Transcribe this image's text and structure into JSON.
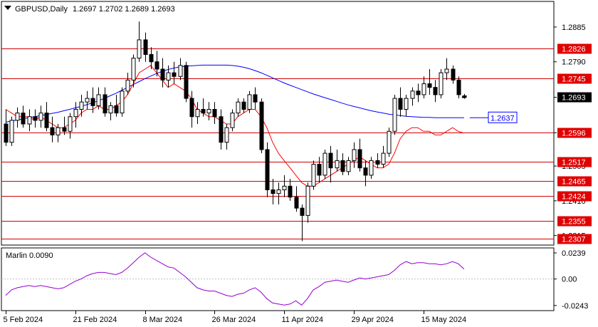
{
  "header": {
    "symbol_tf": "GBPUSD,Daily",
    "ohlc": "1.2697 1.2702 1.2689 1.2693"
  },
  "colors": {
    "candle": "#000000",
    "ma_slow": "#0000ff",
    "ma_fast": "#ff0000",
    "level_line": "#d00000",
    "level_label_bg": "#e00000",
    "current_label_bg": "#000000",
    "ma_label_border": "#0000ff",
    "oscillator": "#9400d3",
    "frame": "#000000"
  },
  "chart_data": [
    {
      "type": "candlestick",
      "title": "GBPUSD,Daily",
      "ylim": [
        1.2289,
        1.2955
      ],
      "yticks": [
        "1.2885",
        "1.2790",
        "1.2693",
        "1.2596",
        "1.2505",
        "1.2410",
        "1.2315"
      ],
      "x_ticks": [
        {
          "label": "5 Feb 2024",
          "index": 0
        },
        {
          "label": "21 Feb 2024",
          "index": 12
        },
        {
          "label": "8 Mar 2024",
          "index": 24
        },
        {
          "label": "26 Mar 2024",
          "index": 36
        },
        {
          "label": "11 Apr 2024",
          "index": 48
        },
        {
          "label": "29 Apr 2024",
          "index": 60
        },
        {
          "label": "15 May 2024",
          "index": 72
        }
      ],
      "levels": [
        {
          "value": 1.2826,
          "label": "1.2826"
        },
        {
          "value": 1.2745,
          "label": "1.2745"
        },
        {
          "value": 1.2596,
          "label": "1.2596"
        },
        {
          "value": 1.2517,
          "label": "1.2517"
        },
        {
          "value": 1.2465,
          "label": "1.2465"
        },
        {
          "value": 1.2424,
          "label": "1.2424"
        },
        {
          "value": 1.2355,
          "label": "1.2355"
        },
        {
          "value": 1.2307,
          "label": "1.2307"
        }
      ],
      "current_price": {
        "value": 1.2693,
        "label": "1.2693"
      },
      "ma_label": {
        "value": 1.2637,
        "label": "1.2637"
      },
      "candles": [
        [
          1.262,
          1.266,
          1.256,
          1.257
        ],
        [
          1.257,
          1.264,
          1.256,
          1.263
        ],
        [
          1.263,
          1.2665,
          1.261,
          1.265
        ],
        [
          1.265,
          1.267,
          1.261,
          1.262
        ],
        [
          1.262,
          1.266,
          1.26,
          1.264
        ],
        [
          1.264,
          1.266,
          1.261,
          1.263
        ],
        [
          1.263,
          1.267,
          1.261,
          1.265
        ],
        [
          1.265,
          1.268,
          1.26,
          1.261
        ],
        [
          1.261,
          1.264,
          1.257,
          1.259
        ],
        [
          1.259,
          1.262,
          1.257,
          1.261
        ],
        [
          1.261,
          1.264,
          1.259,
          1.26
        ],
        [
          1.26,
          1.265,
          1.258,
          1.264
        ],
        [
          1.264,
          1.268,
          1.261,
          1.266
        ],
        [
          1.266,
          1.27,
          1.264,
          1.268
        ],
        [
          1.268,
          1.271,
          1.266,
          1.269
        ],
        [
          1.269,
          1.272,
          1.265,
          1.267
        ],
        [
          1.267,
          1.272,
          1.266,
          1.27
        ],
        [
          1.27,
          1.272,
          1.264,
          1.265
        ],
        [
          1.265,
          1.268,
          1.263,
          1.267
        ],
        [
          1.267,
          1.27,
          1.264,
          1.265
        ],
        [
          1.265,
          1.272,
          1.264,
          1.271
        ],
        [
          1.271,
          1.276,
          1.27,
          1.274
        ],
        [
          1.274,
          1.281,
          1.272,
          1.28
        ],
        [
          1.28,
          1.29,
          1.279,
          1.285
        ],
        [
          1.285,
          1.287,
          1.279,
          1.281
        ],
        [
          1.281,
          1.283,
          1.277,
          1.279
        ],
        [
          1.279,
          1.282,
          1.275,
          1.277
        ],
        [
          1.277,
          1.28,
          1.272,
          1.274
        ],
        [
          1.274,
          1.278,
          1.272,
          1.276
        ],
        [
          1.276,
          1.279,
          1.273,
          1.275
        ],
        [
          1.275,
          1.28,
          1.274,
          1.278
        ],
        [
          1.278,
          1.279,
          1.268,
          1.269
        ],
        [
          1.269,
          1.271,
          1.261,
          1.264
        ],
        [
          1.264,
          1.268,
          1.262,
          1.266
        ],
        [
          1.266,
          1.269,
          1.264,
          1.265
        ],
        [
          1.265,
          1.268,
          1.263,
          1.266
        ],
        [
          1.266,
          1.268,
          1.262,
          1.264
        ],
        [
          1.264,
          1.266,
          1.255,
          1.257
        ],
        [
          1.257,
          1.262,
          1.255,
          1.261
        ],
        [
          1.261,
          1.266,
          1.26,
          1.265
        ],
        [
          1.265,
          1.269,
          1.264,
          1.268
        ],
        [
          1.268,
          1.269,
          1.265,
          1.266
        ],
        [
          1.266,
          1.271,
          1.265,
          1.27
        ],
        [
          1.27,
          1.272,
          1.266,
          1.268
        ],
        [
          1.268,
          1.269,
          1.254,
          1.255
        ],
        [
          1.255,
          1.257,
          1.242,
          1.244
        ],
        [
          1.244,
          1.247,
          1.24,
          1.243
        ],
        [
          1.243,
          1.246,
          1.24,
          1.244
        ],
        [
          1.244,
          1.248,
          1.242,
          1.245
        ],
        [
          1.245,
          1.247,
          1.241,
          1.242
        ],
        [
          1.242,
          1.245,
          1.238,
          1.239
        ],
        [
          1.239,
          1.24,
          1.23,
          1.237
        ],
        [
          1.237,
          1.246,
          1.235,
          1.245
        ],
        [
          1.245,
          1.252,
          1.244,
          1.251
        ],
        [
          1.251,
          1.253,
          1.246,
          1.248
        ],
        [
          1.248,
          1.255,
          1.247,
          1.254
        ],
        [
          1.254,
          1.256,
          1.246,
          1.25
        ],
        [
          1.25,
          1.255,
          1.249,
          1.252
        ],
        [
          1.252,
          1.254,
          1.248,
          1.249
        ],
        [
          1.249,
          1.253,
          1.248,
          1.252
        ],
        [
          1.252,
          1.257,
          1.25,
          1.255
        ],
        [
          1.255,
          1.258,
          1.249,
          1.25
        ],
        [
          1.25,
          1.252,
          1.245,
          1.248
        ],
        [
          1.248,
          1.253,
          1.247,
          1.252
        ],
        [
          1.252,
          1.254,
          1.25,
          1.251
        ],
        [
          1.251,
          1.256,
          1.25,
          1.254
        ],
        [
          1.254,
          1.261,
          1.253,
          1.26
        ],
        [
          1.26,
          1.27,
          1.259,
          1.269
        ],
        [
          1.269,
          1.272,
          1.264,
          1.266
        ],
        [
          1.266,
          1.27,
          1.264,
          1.269
        ],
        [
          1.269,
          1.272,
          1.267,
          1.271
        ],
        [
          1.271,
          1.273,
          1.268,
          1.27
        ],
        [
          1.27,
          1.275,
          1.269,
          1.273
        ],
        [
          1.273,
          1.277,
          1.27,
          1.272
        ],
        [
          1.272,
          1.274,
          1.268,
          1.27
        ],
        [
          1.27,
          1.277,
          1.269,
          1.276
        ],
        [
          1.276,
          1.28,
          1.274,
          1.277
        ],
        [
          1.277,
          1.278,
          1.273,
          1.274
        ],
        [
          1.274,
          1.275,
          1.269,
          1.27
        ],
        [
          1.2697,
          1.2702,
          1.2689,
          1.2693
        ]
      ],
      "ma_slow": [
        1.2625,
        1.2628,
        1.2631,
        1.2634,
        1.2637,
        1.264,
        1.2643,
        1.2646,
        1.2649,
        1.2652,
        1.2656,
        1.266,
        1.2664,
        1.2668,
        1.2673,
        1.2678,
        1.2684,
        1.269,
        1.2697,
        1.2704,
        1.2712,
        1.272,
        1.2728,
        1.2736,
        1.2744,
        1.2751,
        1.2758,
        1.2764,
        1.2769,
        1.2773,
        1.2776,
        1.2778,
        1.2779,
        1.278,
        1.2781,
        1.2781,
        1.2781,
        1.2781,
        1.2781,
        1.278,
        1.2778,
        1.2775,
        1.2771,
        1.2766,
        1.276,
        1.2753,
        1.2746,
        1.2739,
        1.2732,
        1.2726,
        1.272,
        1.2714,
        1.2708,
        1.2702,
        1.2697,
        1.2692,
        1.2687,
        1.2682,
        1.2677,
        1.2672,
        1.2668,
        1.2664,
        1.266,
        1.2656,
        1.2653,
        1.265,
        1.2647,
        1.2645,
        1.2643,
        1.2641,
        1.264,
        1.2639,
        1.2638,
        1.2638,
        1.2637,
        1.2637,
        1.2637,
        1.2637,
        1.2637,
        1.2637
      ],
      "ma_fast": [
        1.266,
        1.265,
        1.264,
        1.264,
        1.264,
        1.263,
        1.264,
        1.263,
        1.262,
        1.261,
        1.261,
        1.262,
        1.263,
        1.265,
        1.266,
        1.266,
        1.267,
        1.266,
        1.266,
        1.267,
        1.268,
        1.27,
        1.273,
        1.276,
        1.277,
        1.278,
        1.276,
        1.274,
        1.272,
        1.273,
        1.272,
        1.271,
        1.269,
        1.266,
        1.265,
        1.264,
        1.264,
        1.263,
        1.262,
        1.262,
        1.264,
        1.265,
        1.266,
        1.266,
        1.264,
        1.261,
        1.257,
        1.254,
        1.252,
        1.25,
        1.248,
        1.246,
        1.245,
        1.245,
        1.246,
        1.247,
        1.248,
        1.249,
        1.25,
        1.251,
        1.252,
        1.253,
        1.252,
        1.251,
        1.25,
        1.25,
        1.251,
        1.254,
        1.258,
        1.26,
        1.261,
        1.261,
        1.26,
        1.26,
        1.259,
        1.259,
        1.26,
        1.261,
        1.26,
        1.2595
      ]
    },
    {
      "type": "line",
      "title": "Marlin 0.0090",
      "ylim": [
        -0.029,
        0.0285
      ],
      "yticks": [
        "0.0239",
        "0.00",
        "-0.0243"
      ],
      "series": [
        {
          "name": "Marlin",
          "values": [
            -0.015,
            -0.01,
            -0.008,
            -0.007,
            -0.006,
            -0.007,
            -0.006,
            -0.007,
            -0.008,
            -0.009,
            -0.008,
            -0.005,
            -0.002,
            0.0,
            0.003,
            0.005,
            0.006,
            0.006,
            0.005,
            0.004,
            0.006,
            0.01,
            0.015,
            0.02,
            0.024,
            0.02,
            0.017,
            0.014,
            0.011,
            0.01,
            0.006,
            0.002,
            -0.003,
            -0.008,
            -0.01,
            -0.011,
            -0.011,
            -0.013,
            -0.015,
            -0.016,
            -0.014,
            -0.013,
            -0.01,
            -0.008,
            -0.012,
            -0.018,
            -0.022,
            -0.023,
            -0.024,
            -0.023,
            -0.02,
            -0.024,
            -0.018,
            -0.01,
            -0.007,
            -0.003,
            -0.002,
            -0.001,
            -0.002,
            -0.003,
            -0.001,
            0.001,
            0.0,
            0.001,
            0.002,
            0.003,
            0.004,
            0.008,
            0.013,
            0.016,
            0.014,
            0.015,
            0.015,
            0.014,
            0.014,
            0.013,
            0.014,
            0.016,
            0.014,
            0.009
          ]
        }
      ]
    }
  ]
}
